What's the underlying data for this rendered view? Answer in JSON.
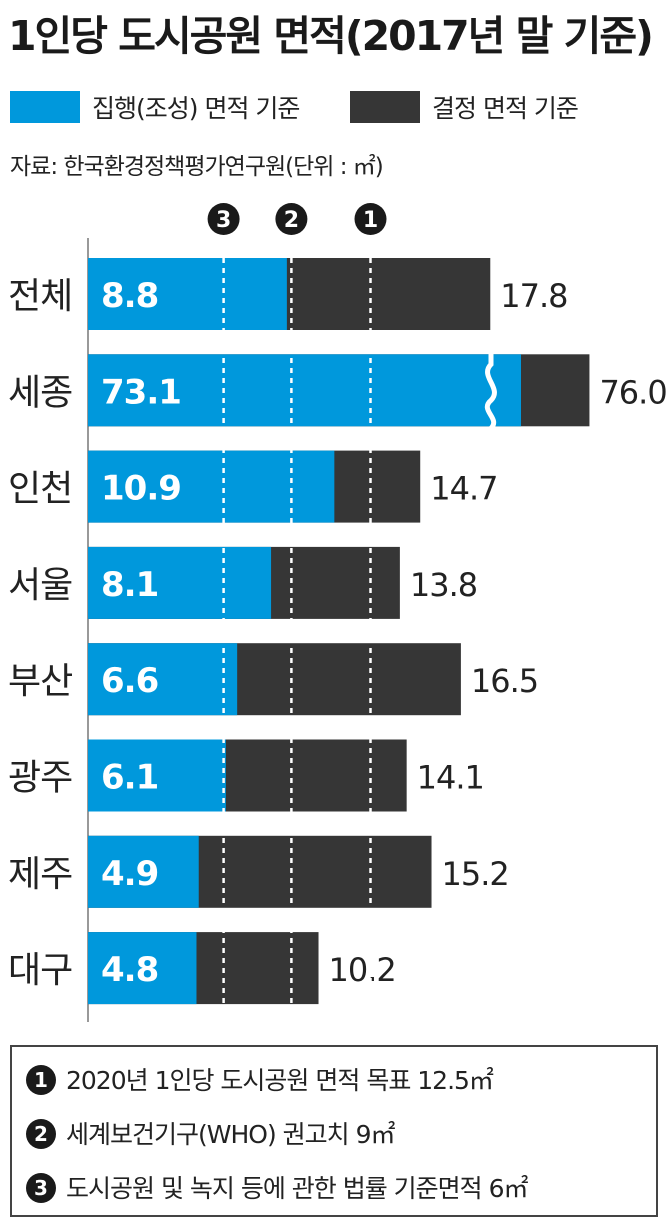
{
  "title": "1인당 도시공원 면적(2017년 말 기준)",
  "legend": [
    {
      "label": "집행(조성) 면적 기준",
      "color": "#0098dc"
    },
    {
      "label": "결정 면적 기준",
      "color": "#363636"
    }
  ],
  "source": "자료: 한국환경정책평가연구원(단위 : ㎡)",
  "chart_data": {
    "type": "bar",
    "orientation": "horizontal",
    "stacked": "overlay",
    "categories": [
      "전체",
      "세종",
      "인천",
      "서울",
      "부산",
      "광주",
      "제주",
      "대구"
    ],
    "series": [
      {
        "name": "집행(조성) 면적 기준",
        "color": "#0098dc",
        "values": [
          8.8,
          73.1,
          10.9,
          8.1,
          6.6,
          6.1,
          4.9,
          4.8
        ]
      },
      {
        "name": "결정 면적 기준",
        "color": "#363636",
        "values": [
          17.8,
          76.0,
          14.7,
          13.8,
          16.5,
          14.1,
          15.2,
          10.2
        ]
      }
    ],
    "value_labels_inner": [
      "8.8",
      "73.1",
      "10.9",
      "8.1",
      "6.6",
      "6.1",
      "4.9",
      "4.8"
    ],
    "value_labels_outer": [
      "17.8",
      "76.0",
      "14.7",
      "13.8",
      "16.5",
      "14.1",
      "15.2",
      "10.2"
    ],
    "axis_break": {
      "category": "세종"
    },
    "reference_lines": [
      {
        "marker": "3",
        "value": 6
      },
      {
        "marker": "2",
        "value": 9
      },
      {
        "marker": "1",
        "value": 12.5
      }
    ]
  },
  "notes": [
    {
      "marker": "1",
      "text": "2020년 1인당 도시공원 면적 목표 12.5㎡"
    },
    {
      "marker": "2",
      "text": "세계보건기구(WHO) 권고치 9㎡"
    },
    {
      "marker": "3",
      "text": "도시공원 및 녹지 등에 관한 법률 기준면적 6㎡"
    }
  ]
}
